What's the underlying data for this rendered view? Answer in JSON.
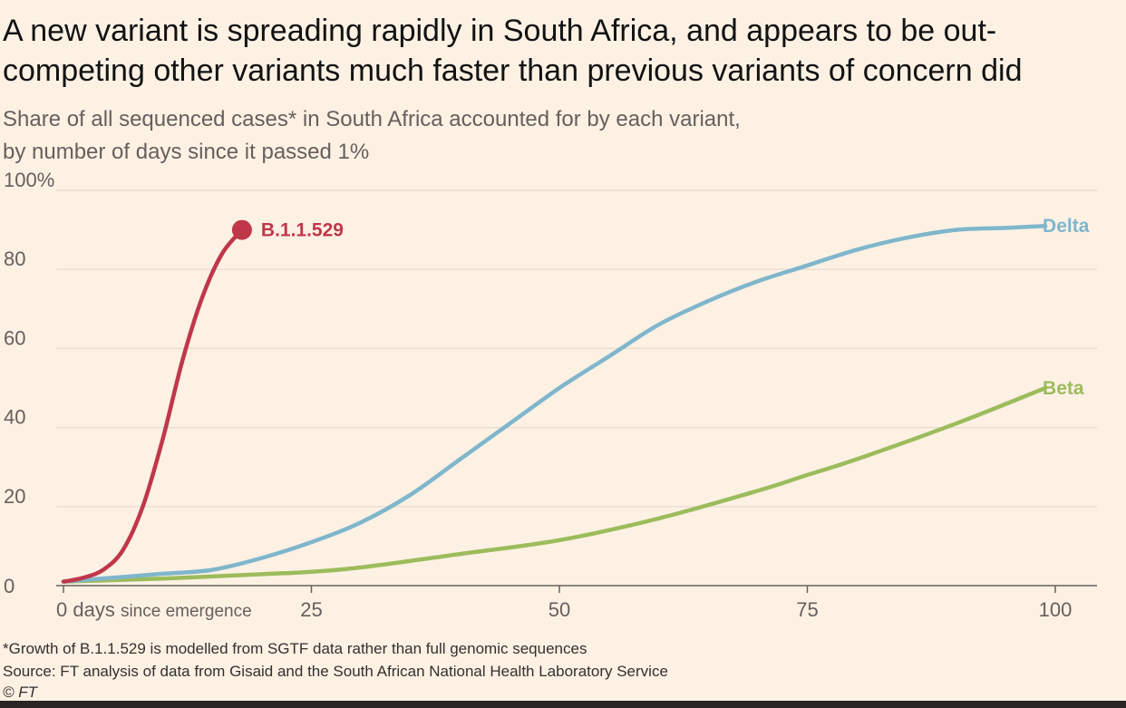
{
  "title": "A new variant is spreading rapidly in South Africa, and appears to be out-competing other variants much faster than previous variants of concern did",
  "subtitle_line1": "Share of all sequenced cases* in South Africa accounted for by each variant,",
  "subtitle_line2": "by number of days since it passed 1%",
  "footnote": "*Growth of B.1.1.529 is modelled from SGTF data rather than full genomic sequences",
  "source": "Source: FT analysis of data from Gisaid and the South African National Health Laboratory Service",
  "copyright": "© FT",
  "chart_data": {
    "type": "line",
    "xlim": [
      0,
      100
    ],
    "ylim": [
      0,
      100
    ],
    "x_ticks": [
      {
        "value": 0,
        "label": "0"
      },
      {
        "value": 25,
        "label": "25"
      },
      {
        "value": 50,
        "label": "50"
      },
      {
        "value": 75,
        "label": "75"
      },
      {
        "value": 100,
        "label": "100"
      }
    ],
    "x_first_tick_suffix_main": "days",
    "x_first_tick_suffix_small": "since emergence",
    "y_ticks": [
      {
        "value": 0,
        "label": "0"
      },
      {
        "value": 20,
        "label": "20"
      },
      {
        "value": 40,
        "label": "40"
      },
      {
        "value": 60,
        "label": "60"
      },
      {
        "value": 80,
        "label": "80"
      },
      {
        "value": 100,
        "label": "100%"
      }
    ],
    "grid": true,
    "series": [
      {
        "name": "B.1.1.529",
        "color": "#c0374a",
        "end_marker": true,
        "label_position": "right",
        "x": [
          0,
          2,
          4,
          6,
          8,
          10,
          12,
          14,
          16,
          18
        ],
        "y": [
          1,
          2,
          4,
          9,
          20,
          37,
          57,
          73,
          84,
          90
        ]
      },
      {
        "name": "Delta",
        "color": "#7fb6cc",
        "end_marker": false,
        "label_position": "right",
        "x": [
          0,
          5,
          10,
          15,
          20,
          25,
          30,
          35,
          40,
          45,
          50,
          55,
          60,
          65,
          70,
          75,
          80,
          85,
          90,
          95,
          99
        ],
        "y": [
          1,
          2,
          3,
          4,
          7,
          11,
          16,
          23,
          32,
          41,
          50,
          58,
          66,
          72,
          77,
          81,
          85,
          88,
          90,
          90.5,
          91
        ]
      },
      {
        "name": "Beta",
        "color": "#9cbc5c",
        "end_marker": false,
        "label_position": "right",
        "x": [
          0,
          10,
          20,
          25,
          30,
          40,
          50,
          60,
          70,
          75,
          80,
          90,
          99
        ],
        "y": [
          1,
          1.8,
          2.9,
          3.5,
          4.6,
          8,
          11.5,
          17,
          24,
          28,
          32,
          41,
          50
        ]
      }
    ]
  }
}
